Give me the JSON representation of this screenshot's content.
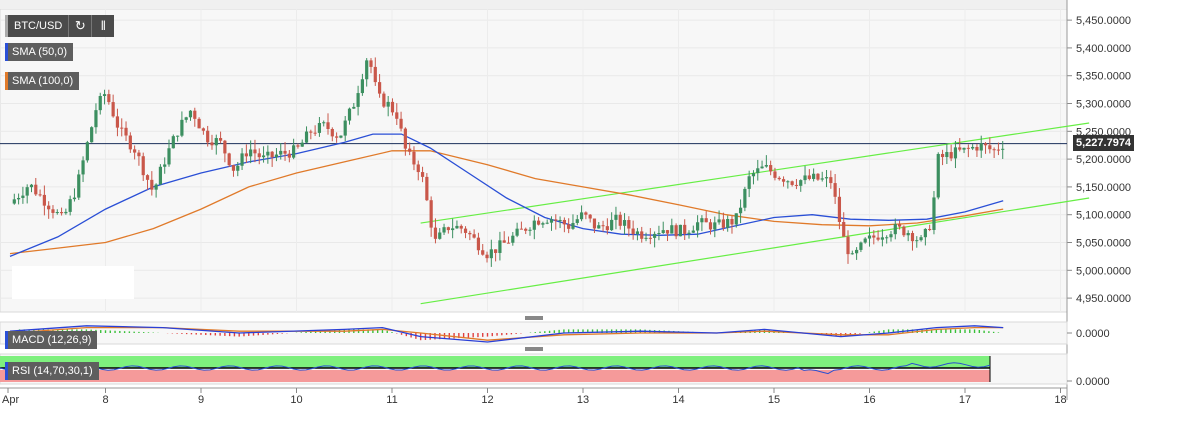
{
  "toolbar": {
    "symbol": "BTC/USD",
    "refresh_icon": "refresh-icon",
    "bars_icon": "bar-chart-icon"
  },
  "legends": {
    "sma50": "SMA (50,0)",
    "sma100": "SMA (100,0)",
    "macd": "MACD (12,26,9)",
    "rsi": "RSI (14,70,30,1)"
  },
  "price_tag": "5,227.7974",
  "colors": {
    "up": "#3c8f60",
    "down": "#c9574a",
    "sma50": "#2a4fd6",
    "sma100": "#e07a2a",
    "channel": "#66ee44",
    "price_line": "#1a2f5a",
    "rsi_over": "#7ef07e",
    "rsi_under": "#f59a9a",
    "rsi_line": "#2b4fd0",
    "macd_line": "#2a3fd6",
    "signal_line": "#e07a2a"
  },
  "chart_data": {
    "type": "candlestick",
    "symbol": "BTC/USD",
    "x_ticks": [
      "Apr",
      "8",
      "9",
      "10",
      "11",
      "12",
      "13",
      "14",
      "15",
      "16",
      "17",
      "18"
    ],
    "y_ticks": [
      "5,450.0000",
      "5,400.0000",
      "5,350.0000",
      "5,300.0000",
      "5,250.0000",
      "5,200.0000",
      "5,150.0000",
      "5,100.0000",
      "5,050.0000",
      "5,000.0000",
      "4,950.0000"
    ],
    "ylim": [
      4925,
      5470
    ],
    "xlim_days": [
      7.0,
      18.3
    ],
    "last_price": 5227.7974,
    "close_path": [
      [
        7.0,
        5120
      ],
      [
        7.2,
        5155
      ],
      [
        7.45,
        5110
      ],
      [
        7.55,
        5090
      ],
      [
        7.7,
        5150
      ],
      [
        7.8,
        5220
      ],
      [
        7.9,
        5290
      ],
      [
        8.0,
        5320
      ],
      [
        8.15,
        5250
      ],
      [
        8.3,
        5220
      ],
      [
        8.5,
        5140
      ],
      [
        8.6,
        5190
      ],
      [
        8.75,
        5250
      ],
      [
        8.9,
        5290
      ],
      [
        9.05,
        5240
      ],
      [
        9.2,
        5230
      ],
      [
        9.35,
        5180
      ],
      [
        9.5,
        5220
      ],
      [
        9.65,
        5200
      ],
      [
        9.85,
        5210
      ],
      [
        10.0,
        5215
      ],
      [
        10.15,
        5250
      ],
      [
        10.3,
        5260
      ],
      [
        10.45,
        5240
      ],
      [
        10.6,
        5300
      ],
      [
        10.75,
        5390
      ],
      [
        10.85,
        5310
      ],
      [
        10.95,
        5300
      ],
      [
        11.05,
        5280
      ],
      [
        11.15,
        5210
      ],
      [
        11.3,
        5180
      ],
      [
        11.45,
        5050
      ],
      [
        11.6,
        5080
      ],
      [
        11.75,
        5075
      ],
      [
        12.0,
        5030
      ],
      [
        12.15,
        5045
      ],
      [
        12.35,
        5070
      ],
      [
        12.5,
        5090
      ],
      [
        12.65,
        5095
      ],
      [
        12.85,
        5080
      ],
      [
        13.0,
        5100
      ],
      [
        13.15,
        5075
      ],
      [
        13.35,
        5090
      ],
      [
        13.6,
        5065
      ],
      [
        13.85,
        5075
      ],
      [
        14.05,
        5070
      ],
      [
        14.2,
        5085
      ],
      [
        14.4,
        5080
      ],
      [
        14.6,
        5090
      ],
      [
        14.75,
        5170
      ],
      [
        14.9,
        5185
      ],
      [
        15.05,
        5170
      ],
      [
        15.2,
        5160
      ],
      [
        15.4,
        5165
      ],
      [
        15.6,
        5160
      ],
      [
        15.72,
        5060
      ],
      [
        15.82,
        5020
      ],
      [
        15.95,
        5050
      ],
      [
        16.1,
        5065
      ],
      [
        16.25,
        5075
      ],
      [
        16.4,
        5070
      ],
      [
        16.55,
        5050
      ],
      [
        16.65,
        5090
      ],
      [
        16.72,
        5200
      ],
      [
        16.85,
        5210
      ],
      [
        17.0,
        5215
      ],
      [
        17.15,
        5225
      ],
      [
        17.3,
        5215
      ],
      [
        17.4,
        5228
      ]
    ],
    "sma50": [
      [
        7.0,
        5025
      ],
      [
        7.5,
        5060
      ],
      [
        8.0,
        5110
      ],
      [
        8.5,
        5150
      ],
      [
        9.0,
        5175
      ],
      [
        9.5,
        5195
      ],
      [
        10.0,
        5210
      ],
      [
        10.5,
        5230
      ],
      [
        10.8,
        5245
      ],
      [
        11.1,
        5245
      ],
      [
        11.4,
        5220
      ],
      [
        11.8,
        5175
      ],
      [
        12.2,
        5130
      ],
      [
        12.6,
        5095
      ],
      [
        13.0,
        5075
      ],
      [
        13.4,
        5065
      ],
      [
        13.8,
        5063
      ],
      [
        14.2,
        5065
      ],
      [
        14.6,
        5080
      ],
      [
        15.0,
        5095
      ],
      [
        15.4,
        5100
      ],
      [
        15.8,
        5092
      ],
      [
        16.2,
        5090
      ],
      [
        16.6,
        5092
      ],
      [
        17.0,
        5105
      ],
      [
        17.4,
        5125
      ]
    ],
    "sma100": [
      [
        7.0,
        5030
      ],
      [
        7.5,
        5040
      ],
      [
        8.0,
        5050
      ],
      [
        8.5,
        5075
      ],
      [
        9.0,
        5110
      ],
      [
        9.5,
        5150
      ],
      [
        10.0,
        5175
      ],
      [
        10.5,
        5195
      ],
      [
        11.0,
        5215
      ],
      [
        11.4,
        5215
      ],
      [
        12.0,
        5190
      ],
      [
        12.5,
        5165
      ],
      [
        13.0,
        5150
      ],
      [
        13.5,
        5135
      ],
      [
        14.0,
        5118
      ],
      [
        14.5,
        5100
      ],
      [
        15.0,
        5088
      ],
      [
        15.5,
        5082
      ],
      [
        16.0,
        5080
      ],
      [
        16.5,
        5085
      ],
      [
        17.0,
        5098
      ],
      [
        17.4,
        5110
      ]
    ],
    "channel_upper": [
      [
        11.3,
        5085
      ],
      [
        18.3,
        5265
      ]
    ],
    "channel_lower": [
      [
        11.3,
        4940
      ],
      [
        18.3,
        5130
      ]
    ],
    "macd": {
      "ylabel": "0.0000",
      "macd_path": [
        [
          7.0,
          1
        ],
        [
          7.8,
          4
        ],
        [
          8.6,
          3
        ],
        [
          9.4,
          0
        ],
        [
          10.5,
          2
        ],
        [
          10.9,
          3
        ],
        [
          11.3,
          -2
        ],
        [
          12.0,
          -5
        ],
        [
          12.8,
          0
        ],
        [
          13.6,
          1
        ],
        [
          14.4,
          0
        ],
        [
          14.9,
          2
        ],
        [
          15.7,
          -2
        ],
        [
          16.2,
          0
        ],
        [
          16.7,
          3
        ],
        [
          17.1,
          4
        ],
        [
          17.4,
          3
        ]
      ],
      "signal_path": [
        [
          7.0,
          0
        ],
        [
          7.8,
          3
        ],
        [
          8.6,
          3
        ],
        [
          9.4,
          1
        ],
        [
          10.5,
          1
        ],
        [
          10.9,
          2
        ],
        [
          11.3,
          0
        ],
        [
          12.0,
          -4
        ],
        [
          12.8,
          -1
        ],
        [
          13.6,
          0
        ],
        [
          14.4,
          0
        ],
        [
          14.9,
          1
        ],
        [
          15.7,
          -1
        ],
        [
          16.2,
          -1
        ],
        [
          16.7,
          2
        ],
        [
          17.1,
          3
        ],
        [
          17.4,
          3
        ]
      ]
    },
    "rsi": {
      "ylabel": "0.0000",
      "levels": [
        70,
        30
      ],
      "value": 65
    }
  }
}
